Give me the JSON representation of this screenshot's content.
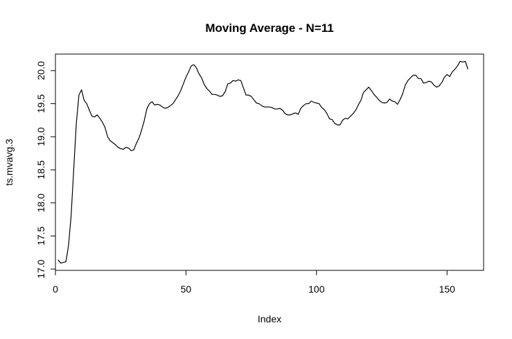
{
  "chart_data": {
    "type": "line",
    "title": "Moving Average - N=11",
    "xlabel": "Index",
    "ylabel": "ts.mvavg.3",
    "xlim": [
      0,
      164
    ],
    "ylim": [
      16.98,
      20.25
    ],
    "x_ticks": [
      0,
      50,
      100,
      150
    ],
    "x_tick_labels": [
      "0",
      "50",
      "100",
      "150"
    ],
    "y_ticks": [
      17.0,
      17.5,
      18.0,
      18.5,
      19.0,
      19.5,
      20.0
    ],
    "y_tick_labels": [
      "17.0",
      "17.5",
      "18.0",
      "18.5",
      "19.0",
      "19.5",
      "20.0"
    ],
    "grid": false,
    "legend": "none",
    "series": [
      {
        "color": "#000000",
        "x": [
          1,
          2,
          3,
          4,
          5,
          6,
          7,
          8,
          9,
          10,
          11,
          12,
          13,
          14,
          15,
          16,
          17,
          18,
          19,
          20,
          21,
          22,
          23,
          24,
          25,
          26,
          27,
          28,
          29,
          30,
          31,
          32,
          33,
          34,
          35,
          36,
          37,
          38,
          39,
          40,
          41,
          42,
          43,
          44,
          45,
          46,
          47,
          48,
          49,
          50,
          51,
          52,
          53,
          54,
          55,
          56,
          57,
          58,
          59,
          60,
          61,
          62,
          63,
          64,
          65,
          66,
          67,
          68,
          69,
          70,
          71,
          72,
          73,
          74,
          75,
          76,
          77,
          78,
          79,
          80,
          81,
          82,
          83,
          84,
          85,
          86,
          87,
          88,
          89,
          90,
          91,
          92,
          93,
          94,
          95,
          96,
          97,
          98,
          99,
          100,
          101,
          102,
          103,
          104,
          105,
          106,
          107,
          108,
          109,
          110,
          111,
          112,
          113,
          114,
          115,
          116,
          117,
          118,
          119,
          120,
          121,
          122,
          123,
          124,
          125,
          126,
          127,
          128,
          129,
          130,
          131,
          132,
          133,
          134,
          135,
          136,
          137,
          138,
          139,
          140,
          141,
          142,
          143,
          144,
          145,
          146,
          147,
          148,
          149,
          150,
          151,
          152,
          153,
          154,
          155,
          156,
          157,
          158
        ],
        "y": [
          17.14,
          17.09,
          17.1,
          17.11,
          17.35,
          17.8,
          18.5,
          19.2,
          19.63,
          19.71,
          19.55,
          19.5,
          19.4,
          19.31,
          19.3,
          19.33,
          19.28,
          19.22,
          19.14,
          19.0,
          18.94,
          18.91,
          18.88,
          18.84,
          18.82,
          18.81,
          18.84,
          18.83,
          18.79,
          18.8,
          18.9,
          18.98,
          19.1,
          19.24,
          19.42,
          19.5,
          19.53,
          19.48,
          19.49,
          19.48,
          19.45,
          19.43,
          19.44,
          19.47,
          19.5,
          19.56,
          19.62,
          19.7,
          19.8,
          19.9,
          19.98,
          20.07,
          20.09,
          20.04,
          19.95,
          19.89,
          19.79,
          19.73,
          19.69,
          19.64,
          19.64,
          19.63,
          19.61,
          19.62,
          19.68,
          19.8,
          19.81,
          19.85,
          19.84,
          19.86,
          19.85,
          19.74,
          19.63,
          19.63,
          19.61,
          19.56,
          19.51,
          19.5,
          19.47,
          19.45,
          19.45,
          19.45,
          19.44,
          19.42,
          19.42,
          19.43,
          19.4,
          19.35,
          19.33,
          19.33,
          19.35,
          19.36,
          19.34,
          19.43,
          19.47,
          19.5,
          19.5,
          19.54,
          19.52,
          19.51,
          19.5,
          19.44,
          19.41,
          19.35,
          19.27,
          19.26,
          19.2,
          19.18,
          19.18,
          19.25,
          19.28,
          19.27,
          19.31,
          19.35,
          19.4,
          19.48,
          19.55,
          19.67,
          19.71,
          19.75,
          19.7,
          19.64,
          19.6,
          19.55,
          19.52,
          19.51,
          19.52,
          19.57,
          19.54,
          19.53,
          19.49,
          19.56,
          19.65,
          19.78,
          19.85,
          19.89,
          19.93,
          19.93,
          19.88,
          19.88,
          19.81,
          19.82,
          19.84,
          19.83,
          19.78,
          19.75,
          19.77,
          19.82,
          19.9,
          19.94,
          19.91,
          19.98,
          20.02,
          20.07,
          20.14,
          20.13,
          20.14,
          20.02
        ]
      }
    ]
  }
}
